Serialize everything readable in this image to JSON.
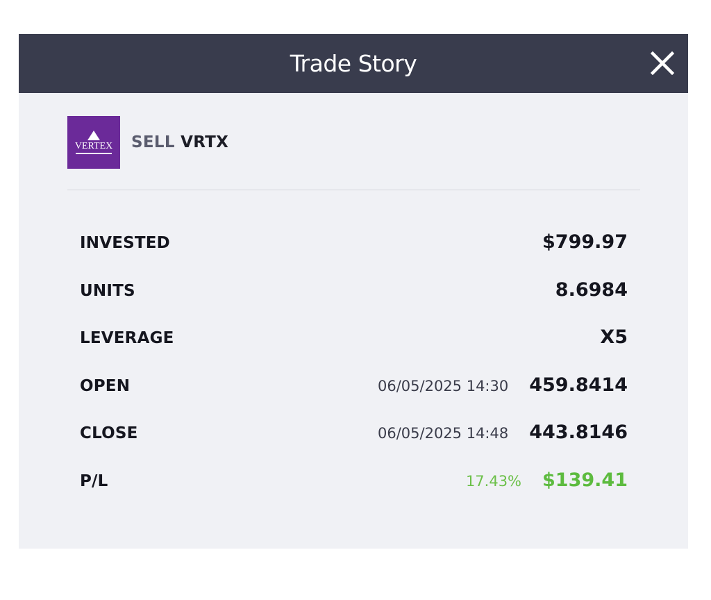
{
  "modal": {
    "title": "Trade Story",
    "close_icon": "close-icon"
  },
  "instrument": {
    "logo_text": "VERTEX",
    "logo_color": "#6b2a99",
    "action": "SELL",
    "symbol": "VRTX"
  },
  "details": {
    "invested": {
      "label": "INVESTED",
      "value": "$799.97"
    },
    "units": {
      "label": "UNITS",
      "value": "8.6984"
    },
    "leverage": {
      "label": "LEVERAGE",
      "value": "X5"
    },
    "open": {
      "label": "OPEN",
      "datetime": "06/05/2025 14:30",
      "value": "459.8414"
    },
    "close": {
      "label": "CLOSE",
      "datetime": "06/05/2025 14:48",
      "value": "443.8146"
    },
    "pl": {
      "label": "P/L",
      "percent": "17.43%",
      "value": "$139.41"
    }
  },
  "colors": {
    "header_bg": "#393c4d",
    "panel_bg": "#f0f1f5",
    "profit_green": "#5dbb3f"
  }
}
